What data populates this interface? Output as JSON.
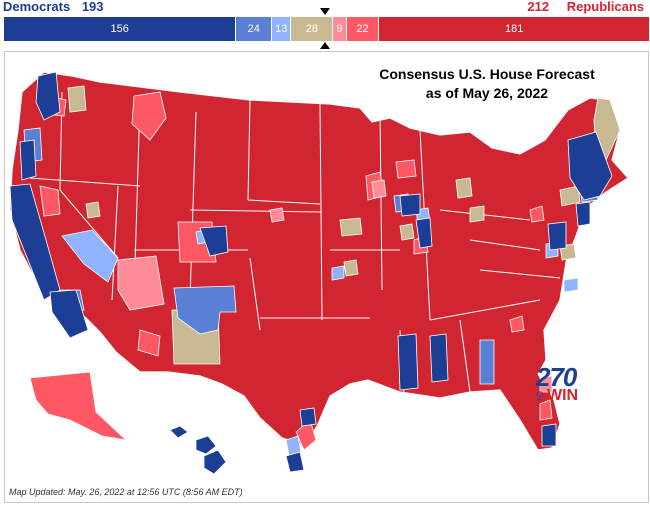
{
  "totals": {
    "dem_label": "Democrats",
    "dem_total": "193",
    "rep_label": "Republicans",
    "rep_total": "212"
  },
  "bar_segments": [
    {
      "label": "156",
      "value": 156,
      "color": "#1c3f95"
    },
    {
      "label": "24",
      "value": 24,
      "color": "#5a7fd4"
    },
    {
      "label": "13",
      "value": 13,
      "color": "#8fb3ff"
    },
    {
      "label": "28",
      "value": 28,
      "color": "#c8b993"
    },
    {
      "label": "9",
      "value": 9,
      "color": "#ff8b98"
    },
    {
      "label": "22",
      "value": 22,
      "color": "#ff5865"
    },
    {
      "label": "181",
      "value": 181,
      "color": "#d22532"
    }
  ],
  "map": {
    "title_line1": "Consensus U.S. House Forecast",
    "title_line2": "as of May 26, 2022",
    "updated": "Map Updated: May. 26, 2022 at 12:56 UTC (8:56 AM EDT)",
    "logo_number": "270",
    "logo_to": "TO",
    "logo_win": "WIN"
  },
  "colors": {
    "safe_dem": "#1c3f95",
    "likely_dem": "#5a7fd4",
    "lean_dem": "#8fb3ff",
    "toss_up": "#c8b993",
    "lean_rep": "#ff8b98",
    "likely_rep": "#ff5865",
    "safe_rep": "#d22532"
  }
}
